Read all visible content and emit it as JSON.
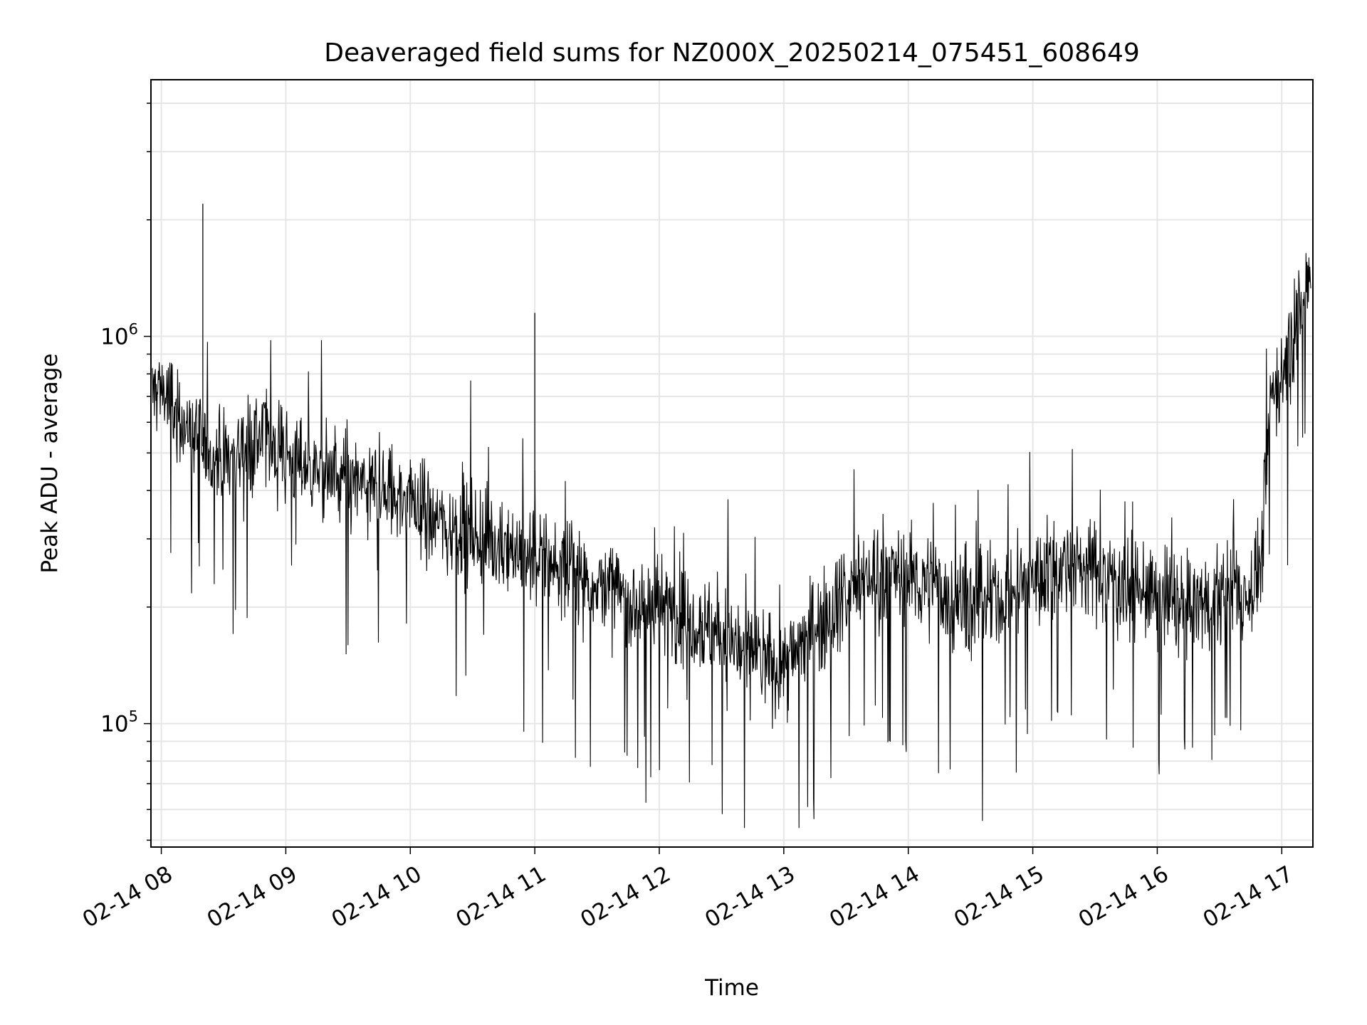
{
  "chart_data": {
    "type": "line",
    "title": "Deaveraged field sums for NZ000X_20250214_075451_608649",
    "xlabel": "Time",
    "ylabel": "Peak ADU - average",
    "yscale": "log",
    "ylim": [
      48000,
      4600000
    ],
    "xlim": [
      "2025-02-14 07:55",
      "2025-02-14 17:15"
    ],
    "x_ticks": [
      {
        "label": "02-14 08",
        "time": "2025-02-14 08:00"
      },
      {
        "label": "02-14 09",
        "time": "2025-02-14 09:00"
      },
      {
        "label": "02-14 10",
        "time": "2025-02-14 10:00"
      },
      {
        "label": "02-14 11",
        "time": "2025-02-14 11:00"
      },
      {
        "label": "02-14 12",
        "time": "2025-02-14 12:00"
      },
      {
        "label": "02-14 13",
        "time": "2025-02-14 13:00"
      },
      {
        "label": "02-14 14",
        "time": "2025-02-14 14:00"
      },
      {
        "label": "02-14 15",
        "time": "2025-02-14 15:00"
      },
      {
        "label": "02-14 16",
        "time": "2025-02-14 16:00"
      },
      {
        "label": "02-14 17",
        "time": "2025-02-14 17:00"
      }
    ],
    "y_ticks": [
      {
        "base": "10",
        "exp": "5",
        "value": 100000
      },
      {
        "base": "10",
        "exp": "6",
        "value": 1000000
      }
    ],
    "grid": true,
    "line_color": "#000000",
    "series": [
      {
        "x": [
          "2025-02-14 07:55",
          "2025-02-14 08:00",
          "2025-02-14 08:05",
          "2025-02-14 08:10",
          "2025-02-14 08:15",
          "2025-02-14 08:20",
          "2025-02-14 08:25",
          "2025-02-14 08:30",
          "2025-02-14 08:40",
          "2025-02-14 08:50",
          "2025-02-14 09:00",
          "2025-02-14 09:15",
          "2025-02-14 09:30",
          "2025-02-14 09:45",
          "2025-02-14 10:00",
          "2025-02-14 10:15",
          "2025-02-14 10:30",
          "2025-02-14 10:45",
          "2025-02-14 11:00",
          "2025-02-14 11:15",
          "2025-02-14 11:30",
          "2025-02-14 11:45",
          "2025-02-14 12:00",
          "2025-02-14 12:15",
          "2025-02-14 12:30",
          "2025-02-14 12:45",
          "2025-02-14 13:00",
          "2025-02-14 13:15",
          "2025-02-14 13:30",
          "2025-02-14 13:45",
          "2025-02-14 14:00",
          "2025-02-14 14:15",
          "2025-02-14 14:30",
          "2025-02-14 14:45",
          "2025-02-14 15:00",
          "2025-02-14 15:15",
          "2025-02-14 15:30",
          "2025-02-14 15:45",
          "2025-02-14 16:00",
          "2025-02-14 16:15",
          "2025-02-14 16:30",
          "2025-02-14 16:45",
          "2025-02-14 16:50",
          "2025-02-14 16:55",
          "2025-02-14 17:00",
          "2025-02-14 17:05",
          "2025-02-14 17:10",
          "2025-02-14 17:15"
        ],
        "y": [
          700000,
          750000,
          650000,
          600000,
          550000,
          520000,
          500000,
          480000,
          520000,
          550000,
          500000,
          450000,
          420000,
          400000,
          380000,
          330000,
          310000,
          290000,
          270000,
          250000,
          230000,
          210000,
          200000,
          190000,
          170000,
          150000,
          140000,
          180000,
          220000,
          250000,
          240000,
          220000,
          200000,
          210000,
          240000,
          260000,
          250000,
          230000,
          210000,
          200000,
          210000,
          220000,
          260000,
          700000,
          800000,
          950000,
          1200000,
          1500000
        ]
      }
    ],
    "annotations": [
      {
        "x": "2025-02-14 11:00",
        "y": 1150000,
        "text": ""
      },
      {
        "x": "2025-02-14 08:20",
        "y": 2200000,
        "text": ""
      }
    ]
  }
}
